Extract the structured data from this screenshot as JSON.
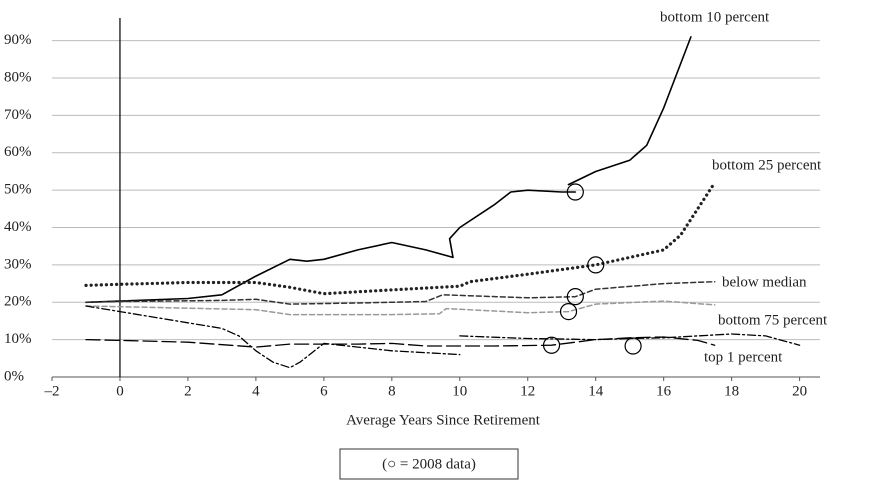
{
  "chart_data": {
    "type": "line",
    "xlabel": "Average Years Since Retirement",
    "note": "(○ = 2008 data)",
    "xlim": [
      -2,
      20.6
    ],
    "ylim": [
      0,
      95
    ],
    "xticks": [
      {
        "value": -2,
        "label": "–2"
      },
      0,
      2,
      4,
      6,
      8,
      10,
      12,
      14,
      16,
      18,
      20
    ],
    "yticks": [
      {
        "value": 0,
        "label": "0%"
      },
      {
        "value": 10,
        "label": "10%"
      },
      {
        "value": 20,
        "label": "20%"
      },
      {
        "value": 30,
        "label": "30%"
      },
      {
        "value": 40,
        "label": "40%"
      },
      {
        "value": 50,
        "label": "50%"
      },
      {
        "value": 60,
        "label": "60%"
      },
      {
        "value": 70,
        "label": "70%"
      },
      {
        "value": 80,
        "label": "80%"
      },
      {
        "value": 90,
        "label": "90%"
      }
    ],
    "grid": true,
    "series": [
      {
        "name": "bottom 10 percent",
        "color": "#000000",
        "dash": "none",
        "width": 1.6,
        "x": [
          -1,
          0,
          2,
          3,
          4,
          5,
          5.5,
          6,
          7,
          8,
          9,
          9.8,
          9.7,
          10,
          11,
          11.5,
          12,
          13,
          13.4,
          null,
          13.2,
          14,
          15,
          15.5,
          16,
          16.8
        ],
        "values": [
          20,
          20.3,
          21,
          22,
          27,
          31.5,
          31,
          31.5,
          34,
          36,
          34,
          32,
          37,
          40,
          46,
          49.5,
          50,
          49.5,
          49.5,
          null,
          51.5,
          55,
          58,
          62,
          72,
          91
        ]
      },
      {
        "name": "bottom 25 percent",
        "color": "#222222",
        "dash": "0.1,5",
        "width": 3.2,
        "x": [
          -1,
          0,
          2,
          4,
          5,
          6,
          8,
          10,
          10.3,
          12,
          14,
          15,
          16,
          16.5,
          17,
          17.5
        ],
        "values": [
          24.5,
          24.8,
          25.3,
          25.3,
          24,
          22.3,
          23.3,
          24.3,
          25.5,
          27.5,
          30,
          32,
          34,
          38,
          45,
          52
        ]
      },
      {
        "name": "below median",
        "color": "#333333",
        "dash": "5,3",
        "width": 1.5,
        "x": [
          -1,
          0,
          3,
          4,
          5,
          7,
          9,
          9.5,
          12,
          13.4,
          14,
          16,
          17.5
        ],
        "values": [
          20,
          20.2,
          20.5,
          20.8,
          19.5,
          19.8,
          20.2,
          22,
          21.2,
          21.5,
          23.5,
          25,
          25.5
        ]
      },
      {
        "name": "bottom 75 percent",
        "color": "#999999",
        "dash": "5,3",
        "width": 1.5,
        "x": [
          -1,
          0,
          4,
          5,
          8,
          9.4,
          9.6,
          12,
          13.2,
          14,
          16,
          17.5
        ],
        "values": [
          19,
          18.8,
          18,
          16.7,
          16.7,
          16.9,
          18.3,
          17.2,
          17.5,
          19.5,
          20.3,
          19.3
        ]
      },
      {
        "name": "top 1 percent",
        "color": "#000000",
        "dash": "8,3,2,3",
        "width": 1.3,
        "x": [
          -1,
          0,
          2,
          3,
          3.5,
          4,
          4.5,
          5,
          5.3,
          6,
          7,
          8,
          10,
          null,
          10,
          12,
          14,
          15,
          16,
          17,
          18,
          19,
          20
        ],
        "values": [
          19,
          17.5,
          14.5,
          13,
          11,
          7,
          4,
          2.5,
          4,
          9,
          8,
          7,
          6,
          null,
          11,
          10.3,
          10,
          10.3,
          10.5,
          11,
          11.5,
          11,
          8.5
        ]
      },
      {
        "color": "#000000",
        "dash": "14,5",
        "width": 1.3,
        "x": [
          -1,
          0,
          2,
          4,
          5,
          7,
          8,
          9,
          11,
          12.7,
          14,
          15,
          16,
          17,
          17.5
        ],
        "values": [
          10,
          9.8,
          9.3,
          8,
          8.8,
          8.8,
          9,
          8.3,
          8.3,
          8.5,
          10,
          10.5,
          10.7,
          9.8,
          8.5
        ]
      }
    ],
    "circles": {
      "x": [
        13.4,
        14,
        13.4,
        13.2,
        12.7,
        15.1
      ],
      "y": [
        49.5,
        30,
        21.5,
        17.5,
        8.5,
        8.3
      ]
    }
  }
}
